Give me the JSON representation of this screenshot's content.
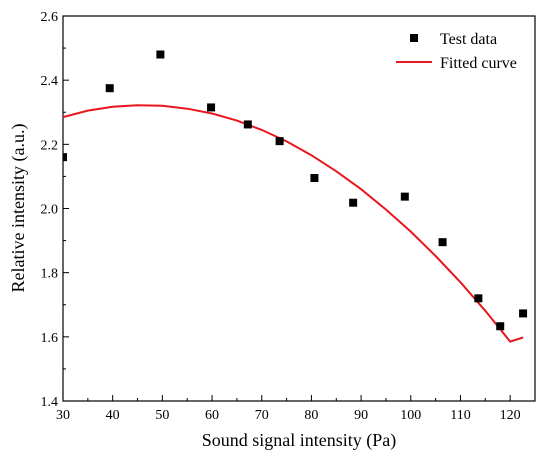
{
  "chart_data": {
    "type": "scatter",
    "xlabel": "Sound signal intensity (Pa)",
    "ylabel": "Relative intensity (a.u.)",
    "xlim": [
      30,
      125
    ],
    "ylim": [
      1.4,
      2.6
    ],
    "x_ticks": [
      30,
      40,
      50,
      60,
      70,
      80,
      90,
      100,
      110,
      120
    ],
    "y_ticks": [
      1.4,
      1.6,
      1.8,
      2.0,
      2.2,
      2.4,
      2.6
    ],
    "x_tick_labels": [
      "30",
      "40",
      "50",
      "60",
      "70",
      "80",
      "90",
      "100",
      "110",
      "120"
    ],
    "y_tick_labels": [
      "1.4",
      "1.6",
      "1.8",
      "2.0",
      "2.2",
      "2.4",
      "2.6"
    ],
    "legend_position": "top-right",
    "grid": false,
    "series": [
      {
        "name": "Test data",
        "kind": "scatter",
        "marker": "square",
        "color": "#000000",
        "x": [
          30.0,
          39.4,
          49.6,
          59.8,
          67.2,
          73.6,
          80.6,
          88.4,
          98.8,
          106.4,
          113.6,
          118.0,
          122.6
        ],
        "y": [
          2.16,
          2.375,
          2.48,
          2.315,
          2.262,
          2.21,
          2.095,
          2.018,
          2.037,
          1.895,
          1.72,
          1.633,
          1.673
        ]
      },
      {
        "name": "Fitted curve",
        "kind": "line",
        "color": "#e8171d",
        "x": [
          30,
          35,
          40,
          45,
          50,
          55,
          60,
          65,
          70,
          75,
          80,
          85,
          90,
          95,
          100,
          105,
          110,
          115,
          120,
          122.6
        ],
        "y": [
          2.285,
          2.305,
          2.317,
          2.322,
          2.32,
          2.311,
          2.296,
          2.274,
          2.245,
          2.209,
          2.166,
          2.116,
          2.06,
          1.997,
          1.928,
          1.852,
          1.77,
          1.681,
          1.585,
          1.598
        ]
      }
    ]
  }
}
